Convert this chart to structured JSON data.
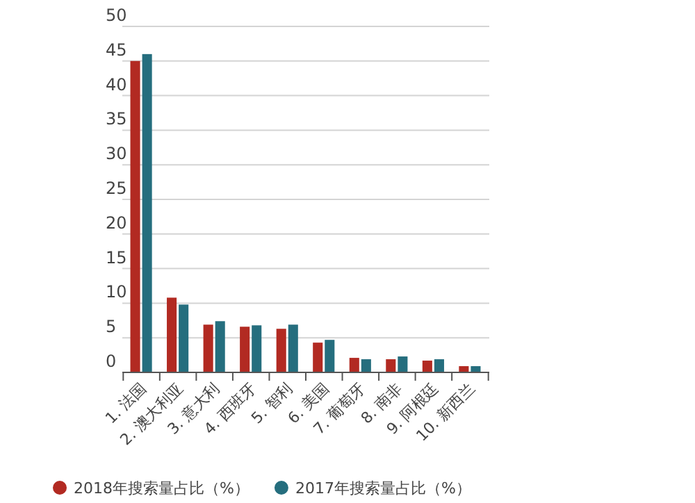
{
  "chart_data": {
    "type": "bar",
    "categories": [
      "1. 法国",
      "2. 澳大利亚",
      "3. 意大利",
      "4. 西班牙",
      "5. 智利",
      "6. 美国",
      "7. 葡萄牙",
      "8. 南非",
      "9. 阿根廷",
      "10. 新西兰"
    ],
    "series": [
      {
        "name": "2018年搜索量占比（%）",
        "color": "#b22a22",
        "values": [
          45,
          10.8,
          6.9,
          6.6,
          6.3,
          4.3,
          2.1,
          1.9,
          1.7,
          0.9
        ]
      },
      {
        "name": "2017年搜索量占比（%）",
        "color": "#256e7e",
        "values": [
          46,
          9.8,
          7.4,
          6.8,
          6.9,
          4.7,
          1.9,
          2.3,
          1.9,
          0.9
        ]
      }
    ],
    "ylim": [
      0,
      50
    ],
    "yticks": [
      0,
      5,
      10,
      15,
      20,
      25,
      30,
      35,
      40,
      45,
      50
    ],
    "grid": "y",
    "legend": "bottom"
  }
}
